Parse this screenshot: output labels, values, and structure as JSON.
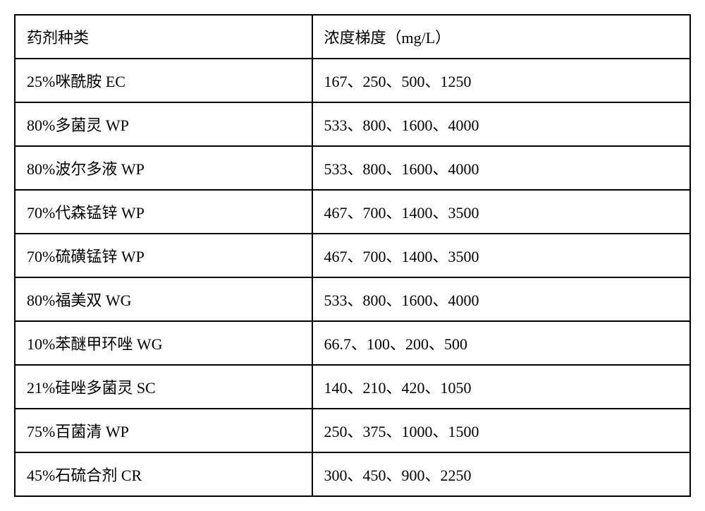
{
  "table": {
    "columns": [
      "药剂种类",
      "浓度梯度（mg/L）"
    ],
    "rows": [
      [
        "25%咪酰胺 EC",
        "167、250、500、1250"
      ],
      [
        "80%多菌灵 WP",
        "533、800、1600、4000"
      ],
      [
        "80%波尔多液 WP",
        "533、800、1600、4000"
      ],
      [
        "70%代森锰锌 WP",
        "467、700、1400、3500"
      ],
      [
        "70%硫磺锰锌 WP",
        "467、700、1400、3500"
      ],
      [
        "80%福美双 WG",
        "533、800、1600、4000"
      ],
      [
        "10%苯醚甲环唑 WG",
        "66.7、100、200、500"
      ],
      [
        "21%硅唑多菌灵 SC",
        "140、210、420、1050"
      ],
      [
        "75%百菌清 WP",
        "250、375、1000、1500"
      ],
      [
        "45%石硫合剂 CR",
        "300、450、900、2250"
      ]
    ],
    "border_color": "#000000",
    "background_color": "#ffffff",
    "font_size": 22,
    "cell_padding": "14px 16px"
  }
}
